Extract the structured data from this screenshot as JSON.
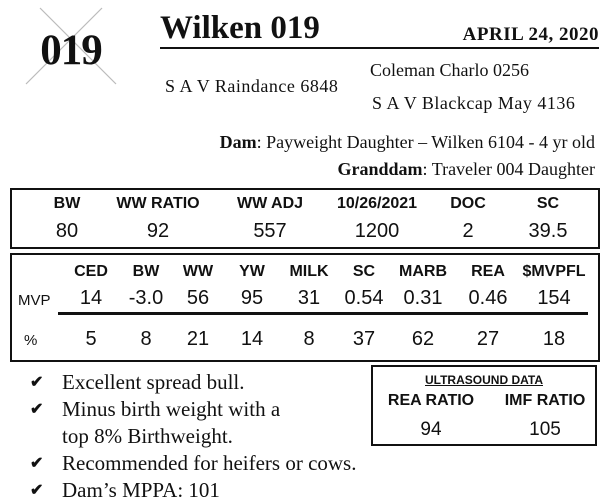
{
  "lot": {
    "number": "019"
  },
  "header": {
    "name": "Wilken 019",
    "date": "APRIL  24, 2020"
  },
  "pedigree": {
    "sire": "S A V Raindance 6848",
    "sire_sire": "Coleman Charlo 0256",
    "sire_dam": "S A V Blackcap May 4136",
    "dam_label": "Dam",
    "dam": ": Payweight Daughter – Wilken 6104 - 4 yr old",
    "granddam_label": "Granddam",
    "granddam": ": Traveler 004 Daughter"
  },
  "performance": {
    "headers": [
      "BW",
      "WW RATIO",
      "WW ADJ",
      "10/26/2021",
      "DOC",
      "SC"
    ],
    "values": [
      "80",
      "92",
      "557",
      "1200",
      "2",
      "39.5"
    ]
  },
  "epds": {
    "headers": [
      "CED",
      "BW",
      "WW",
      "YW",
      "MILK",
      "SC",
      "MARB",
      "REA",
      "$MVPFL"
    ],
    "mvp_label": "MVP",
    "mvp": [
      "14",
      "-3.0",
      "56",
      "95",
      "31",
      "0.54",
      "0.31",
      "0.46",
      "154"
    ],
    "pct_label": "%",
    "pct": [
      "5",
      "8",
      "21",
      "14",
      "8",
      "37",
      "62",
      "27",
      "18"
    ]
  },
  "notes": [
    "Excellent spread bull.",
    "Minus birth weight with a",
    "top 8% Birthweight.",
    "Recommended for heifers or cows.",
    "Dam’s MPPA: 101"
  ],
  "ultrasound": {
    "title": "ULTRASOUND DATA",
    "rea_label": "REA RATIO",
    "rea_value": "94",
    "imf_label": "IMF RATIO",
    "imf_value": "105"
  }
}
